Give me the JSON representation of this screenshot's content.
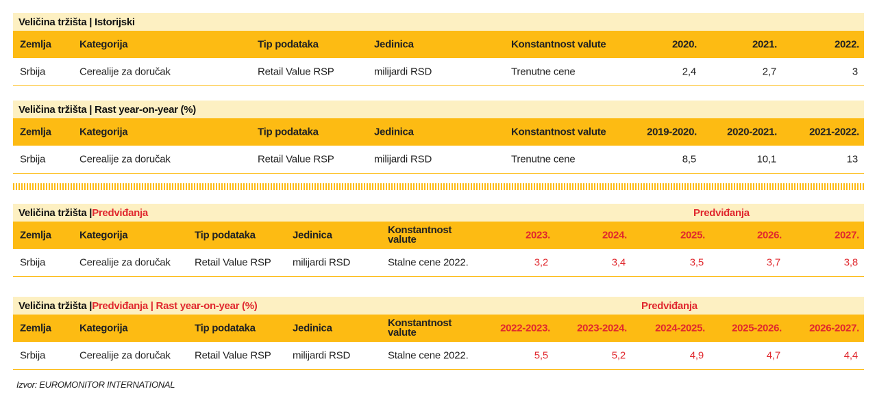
{
  "sections": [
    {
      "title_parts": [
        "Veličina tržišta | Istorijski"
      ],
      "headers": [
        "Zemlja",
        "Kategorija",
        "Tip podataka",
        "Jedinica",
        "Konstantnost valute",
        "2020.",
        "2021.",
        "2022."
      ],
      "row": [
        "Srbija",
        "Cerealije za doručak",
        "Retail Value RSP",
        "milijardi RSD",
        "Trenutne cene",
        "2,4",
        "2,7",
        "3"
      ]
    },
    {
      "title_parts": [
        "Veličina tržišta | Rast year-on-year (%)"
      ],
      "headers": [
        "Zemlja",
        "Kategorija",
        "Tip podataka",
        "Jedinica",
        "Konstantnost valute",
        "2019-2020.",
        "2020-2021.",
        "2021-2022."
      ],
      "row": [
        "Srbija",
        "Cerealije za doručak",
        "Retail Value RSP",
        "milijardi RSD",
        "Trenutne cene",
        "8,5",
        "10,1",
        "13"
      ]
    },
    {
      "title_parts": [
        "Veličina tržišta | ",
        "Predviđanja"
      ],
      "right_label": "Predviđanja",
      "headers": [
        "Zemlja",
        "Kategorija",
        "Tip podataka",
        "Jedinica",
        "Konstantnost valute",
        "2023.",
        "2024.",
        "2025.",
        "2026.",
        "2027."
      ],
      "row": [
        "Srbija",
        "Cerealije za doručak",
        "Retail Value RSP",
        "milijardi RSD",
        "Stalne cene 2022.",
        "3,2",
        "3,4",
        "3,5",
        "3,7",
        "3,8"
      ]
    },
    {
      "title_parts": [
        "Veličina tržišta | ",
        "Predviđanja | Rast year-on-year (%)"
      ],
      "right_label": "Predviđanja",
      "headers": [
        "Zemlja",
        "Kategorija",
        "Tip podataka",
        "Jedinica",
        "Konstantnost valute",
        "2022-2023.",
        "2023-2024.",
        "2024-2025.",
        "2025-2026.",
        "2026-2027."
      ],
      "row": [
        "Srbija",
        "Cerealije za doručak",
        "Retail Value RSP",
        "milijardi RSD",
        "Stalne cene 2022.",
        "5,5",
        "5,2",
        "4,9",
        "4,7",
        "4,4"
      ]
    }
  ],
  "source": "Izvor: EUROMONITOR INTERNATIONAL",
  "colors": {
    "header": "#fdbb13",
    "title_bg": "#fdf0c2",
    "accent_red": "#e0282e"
  }
}
